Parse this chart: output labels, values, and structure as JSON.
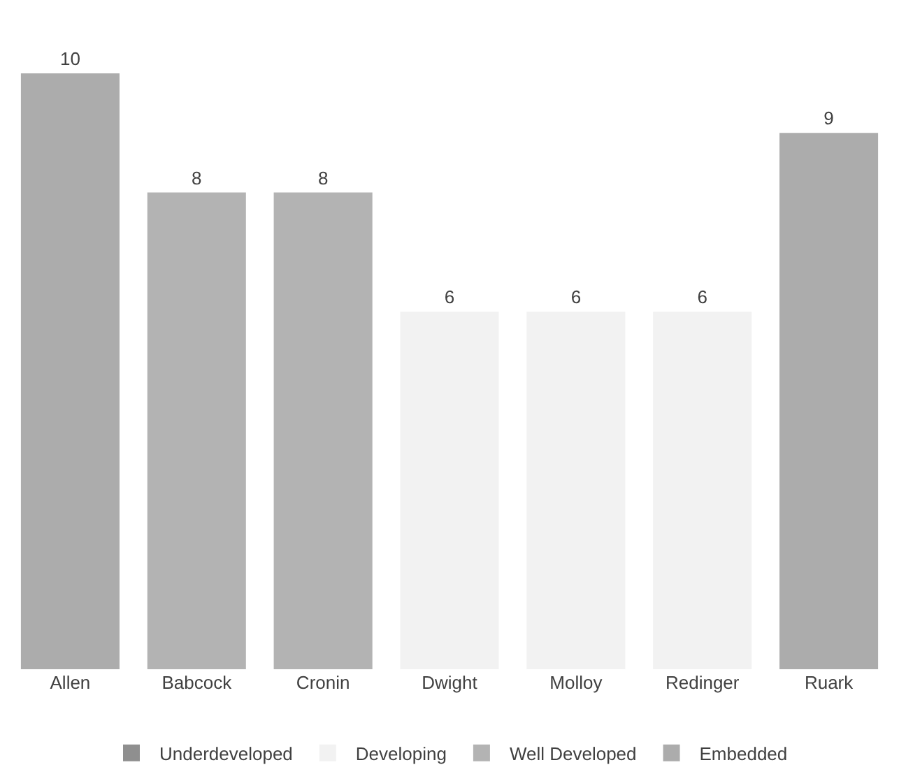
{
  "chart_data": {
    "type": "bar",
    "categories": [
      "Allen",
      "Babcock",
      "Cronin",
      "Dwight",
      "Molloy",
      "Redinger",
      "Ruark"
    ],
    "series": [
      {
        "name": "Underdeveloped",
        "color": "#8f8f8f",
        "values": [
          null,
          null,
          null,
          null,
          null,
          null,
          null
        ]
      },
      {
        "name": "Developing",
        "color": "#f2f2f2",
        "values": [
          null,
          null,
          null,
          6,
          6,
          6,
          null
        ]
      },
      {
        "name": "Well Developed",
        "color": "#b3b3b3",
        "values": [
          null,
          8,
          8,
          null,
          null,
          null,
          null
        ]
      },
      {
        "name": "Embedded",
        "color": "#acacac",
        "values": [
          10,
          null,
          null,
          null,
          null,
          null,
          9
        ]
      }
    ],
    "data_labels": true,
    "legend": "bottom"
  }
}
